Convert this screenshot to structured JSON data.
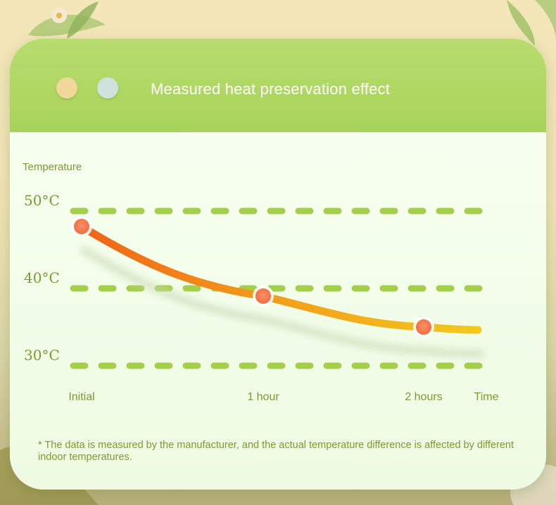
{
  "header": {
    "title": "Measured heat preservation effect"
  },
  "colors": {
    "header_green": "#a7d45a",
    "label_green": "#7c9a2e",
    "dash_green": "#a4cf4a",
    "curve_start": "#f06a1a",
    "curve_end": "#f1c41c",
    "marker": "#f47a4c"
  },
  "chart_data": {
    "type": "line",
    "title": "",
    "ylabel": "Temperature",
    "xlabel": "Time",
    "x_ticks": [
      "Initial",
      "1 hour",
      "2 hours"
    ],
    "y_ticks": [
      "50°C",
      "40°C",
      "30°C"
    ],
    "y_tick_values": [
      50,
      40,
      30
    ],
    "ylim": [
      30,
      50
    ],
    "grid": true,
    "series": [
      {
        "x": [
          "Initial",
          "1 hour",
          "2 hours"
        ],
        "values": [
          48,
          39,
          35
        ]
      }
    ]
  },
  "footnote": "* The data is measured by the manufacturer, and the actual temperature difference is affected by different indoor temperatures."
}
